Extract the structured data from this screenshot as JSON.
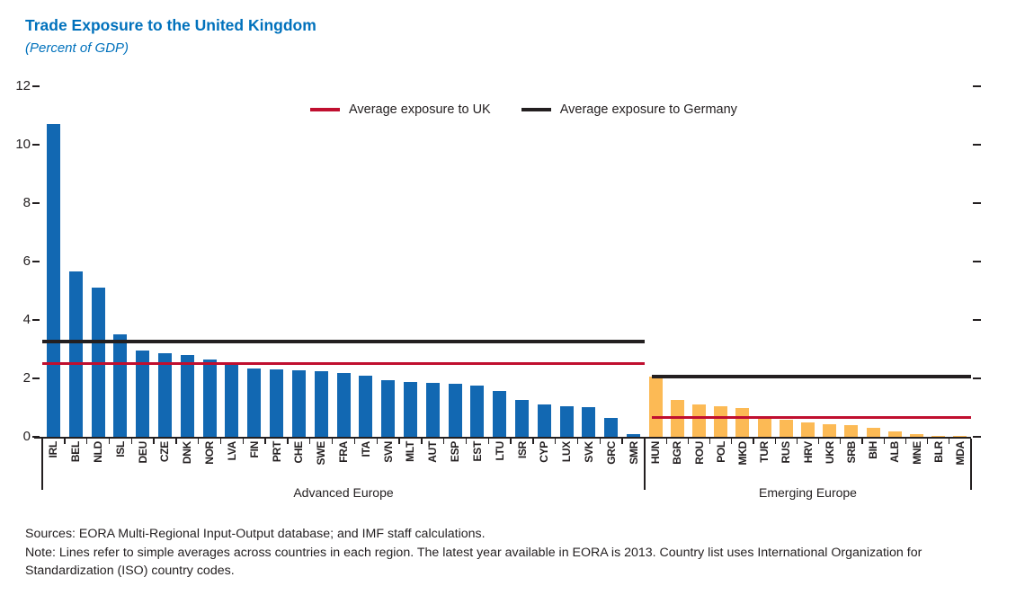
{
  "header": {
    "title": "Trade Exposure to the United Kingdom",
    "subtitle": "(Percent of GDP)"
  },
  "legend": [
    {
      "label": "Average exposure to UK",
      "color": "#c00f2f"
    },
    {
      "label": "Average exposure to Germany",
      "color": "#231f20"
    }
  ],
  "chart_data": {
    "type": "bar",
    "title": "Trade Exposure to the United Kingdom",
    "subtitle": "(Percent of GDP)",
    "ylabel": "",
    "xlabel": "",
    "ylim": [
      0,
      12
    ],
    "yticks": [
      0,
      2,
      4,
      6,
      8,
      10,
      12
    ],
    "grid": false,
    "legend_position": "top-center",
    "groups": [
      {
        "name": "Advanced Europe",
        "bar_color": "#1268b2",
        "categories": [
          "IRL",
          "BEL",
          "NLD",
          "ISL",
          "DEU",
          "CZE",
          "DNK",
          "NOR",
          "LVA",
          "FIN",
          "PRT",
          "CHE",
          "SWE",
          "FRA",
          "ITA",
          "SVN",
          "MLT",
          "AUT",
          "ESP",
          "EST",
          "LTU",
          "ISR",
          "CYP",
          "LUX",
          "SVK",
          "GRC",
          "SMR"
        ],
        "values": [
          10.7,
          5.65,
          5.1,
          3.5,
          2.95,
          2.85,
          2.8,
          2.65,
          2.45,
          2.35,
          2.3,
          2.28,
          2.25,
          2.18,
          2.1,
          1.95,
          1.88,
          1.85,
          1.82,
          1.75,
          1.58,
          1.25,
          1.12,
          1.05,
          1.03,
          0.65,
          0.08
        ],
        "average_exposure_to_uk": 2.5,
        "average_exposure_to_germany": 3.25
      },
      {
        "name": "Emerging Europe",
        "bar_color": "#fcba55",
        "categories": [
          "HUN",
          "BGR",
          "ROU",
          "POL",
          "MKD",
          "TUR",
          "RUS",
          "HRV",
          "UKR",
          "SRB",
          "BIH",
          "ALB",
          "MNE",
          "BLR",
          "MDA"
        ],
        "values": [
          2.05,
          1.25,
          1.1,
          1.05,
          1.0,
          0.68,
          0.6,
          0.5,
          0.42,
          0.4,
          0.3,
          0.2,
          0.08,
          0.03,
          0.02
        ],
        "average_exposure_to_uk": 0.65,
        "average_exposure_to_germany": 2.05
      }
    ],
    "line_colors": {
      "average_exposure_to_uk": "#c00f2f",
      "average_exposure_to_germany": "#231f20"
    }
  },
  "footer": {
    "sources": "Sources: EORA Multi-Regional Input-Output database; and IMF staff calculations.",
    "note": "Note: Lines refer to simple averages across countries in each region. The latest year available in EORA is 2013. Country list uses International Organization for Standardization (ISO) country codes."
  }
}
